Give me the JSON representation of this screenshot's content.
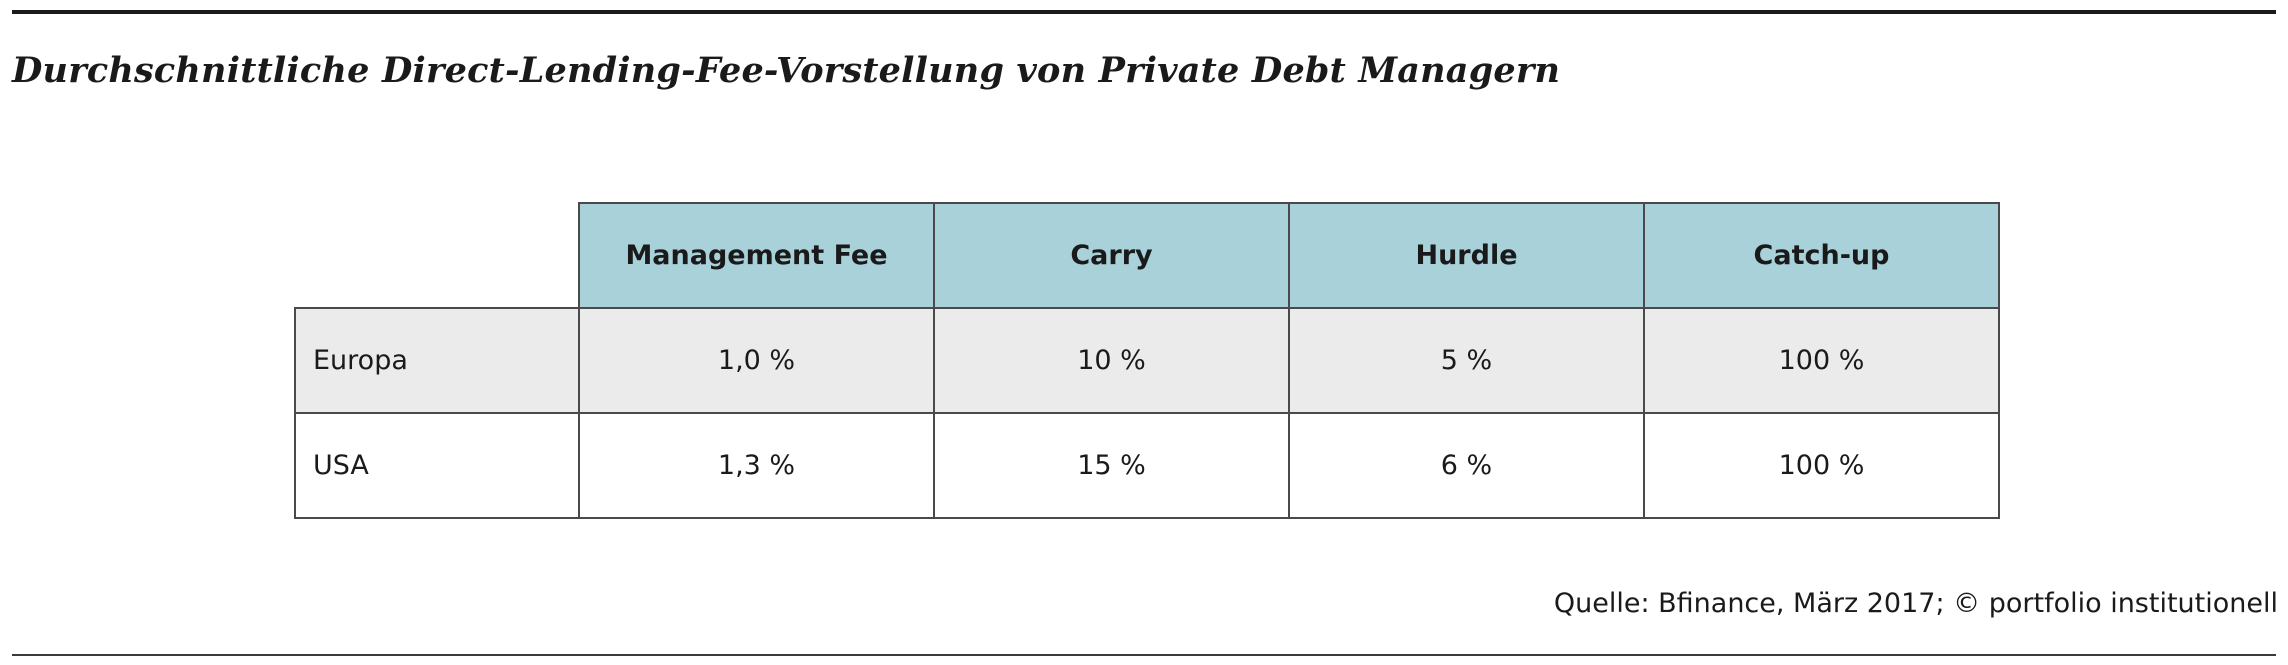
{
  "chart_data": {
    "type": "table",
    "title": "Durchschnittliche Direct-Lending-Fee-Vorstellung von Private Debt Managern",
    "columns": [
      "Management Fee",
      "Carry",
      "Hurdle",
      "Catch-up"
    ],
    "rows": [
      {
        "label": "Europa",
        "cells": [
          "1,0 %",
          "10 %",
          "5 %",
          "100 %"
        ]
      },
      {
        "label": "USA",
        "cells": [
          "1,3 %",
          "15 %",
          "6 %",
          "100 %"
        ]
      }
    ],
    "source": "Quelle: Bfinance, März 2017; © portfolio institutionell"
  },
  "colors": {
    "header_bg": "#a9d1d9",
    "shaded_row_bg": "#ebebeb",
    "border": "#4a4a4a"
  }
}
